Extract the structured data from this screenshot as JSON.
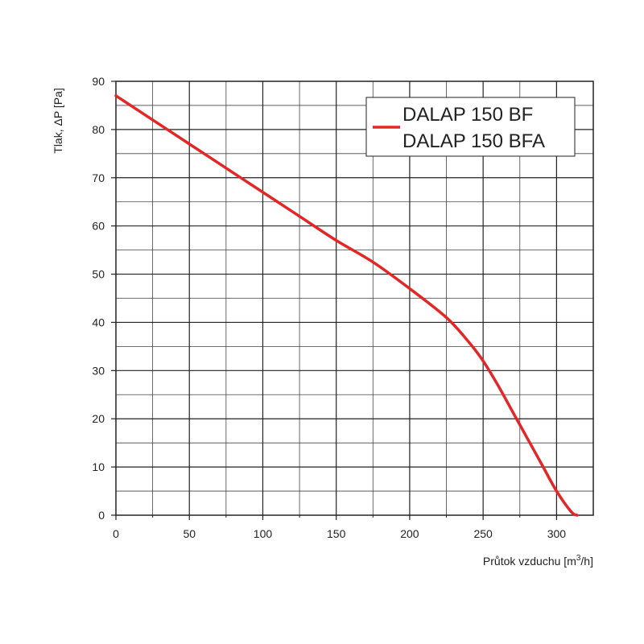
{
  "chart_data": {
    "type": "line",
    "title": "",
    "xlabel": "Průtok vzduchu [m³/h]",
    "xlabel_parts": {
      "main": "Průtok vzduchu [m",
      "sup": "3",
      "end": "/h]"
    },
    "ylabel": "Tlak, ΔP [Pa]",
    "xlim": [
      0,
      325
    ],
    "ylim": [
      0,
      90
    ],
    "x_ticks": [
      0,
      50,
      100,
      150,
      200,
      250,
      300
    ],
    "x_tick_labels": [
      "0",
      "50",
      "100",
      "150",
      "200",
      "250",
      "300"
    ],
    "y_ticks": [
      0,
      10,
      20,
      30,
      40,
      50,
      60,
      70,
      80,
      90
    ],
    "y_tick_labels": [
      "0",
      "10",
      "20",
      "30",
      "40",
      "50",
      "60",
      "70",
      "80",
      "90"
    ],
    "grid": true,
    "legend_position": "top-right",
    "legend_lines": [
      "DALAP 150 BF",
      "DALAP 150 BFA"
    ],
    "series": [
      {
        "name": "DALAP 150 BF / DALAP 150 BFA",
        "color": "#e32626",
        "x": [
          0,
          25,
          50,
          75,
          100,
          125,
          150,
          175,
          200,
          225,
          240,
          250,
          260,
          270,
          280,
          290,
          300,
          310,
          314
        ],
        "y": [
          87,
          82,
          77,
          72,
          67,
          62,
          57,
          52.5,
          47,
          41,
          36,
          32,
          27,
          21.5,
          16,
          10.5,
          5,
          0.7,
          0
        ]
      }
    ]
  }
}
